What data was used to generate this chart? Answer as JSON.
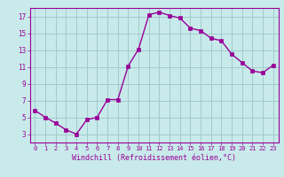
{
  "x": [
    0,
    1,
    2,
    3,
    4,
    5,
    6,
    7,
    8,
    9,
    10,
    11,
    12,
    13,
    14,
    15,
    16,
    17,
    18,
    19,
    20,
    21,
    22,
    23
  ],
  "y": [
    5.8,
    5.0,
    4.3,
    3.5,
    3.0,
    4.7,
    5.0,
    7.1,
    7.1,
    11.1,
    13.1,
    17.2,
    17.5,
    17.1,
    16.8,
    15.6,
    15.3,
    14.4,
    14.1,
    12.5,
    11.5,
    10.5,
    10.3,
    11.2
  ],
  "line_color": "#990099",
  "marker_color": "#990099",
  "bg_color": "#c8eaea",
  "grid_color": "#a0cccc",
  "xlabel": "Windchill (Refroidissement éolien,°C)",
  "xlabel_color": "#990099",
  "tick_color": "#990099",
  "xlim": [
    -0.5,
    23.5
  ],
  "ylim": [
    2.0,
    18.0
  ],
  "yticks": [
    3,
    5,
    7,
    9,
    11,
    13,
    15,
    17
  ],
  "xticks": [
    0,
    1,
    2,
    3,
    4,
    5,
    6,
    7,
    8,
    9,
    10,
    11,
    12,
    13,
    14,
    15,
    16,
    17,
    18,
    19,
    20,
    21,
    22,
    23
  ]
}
